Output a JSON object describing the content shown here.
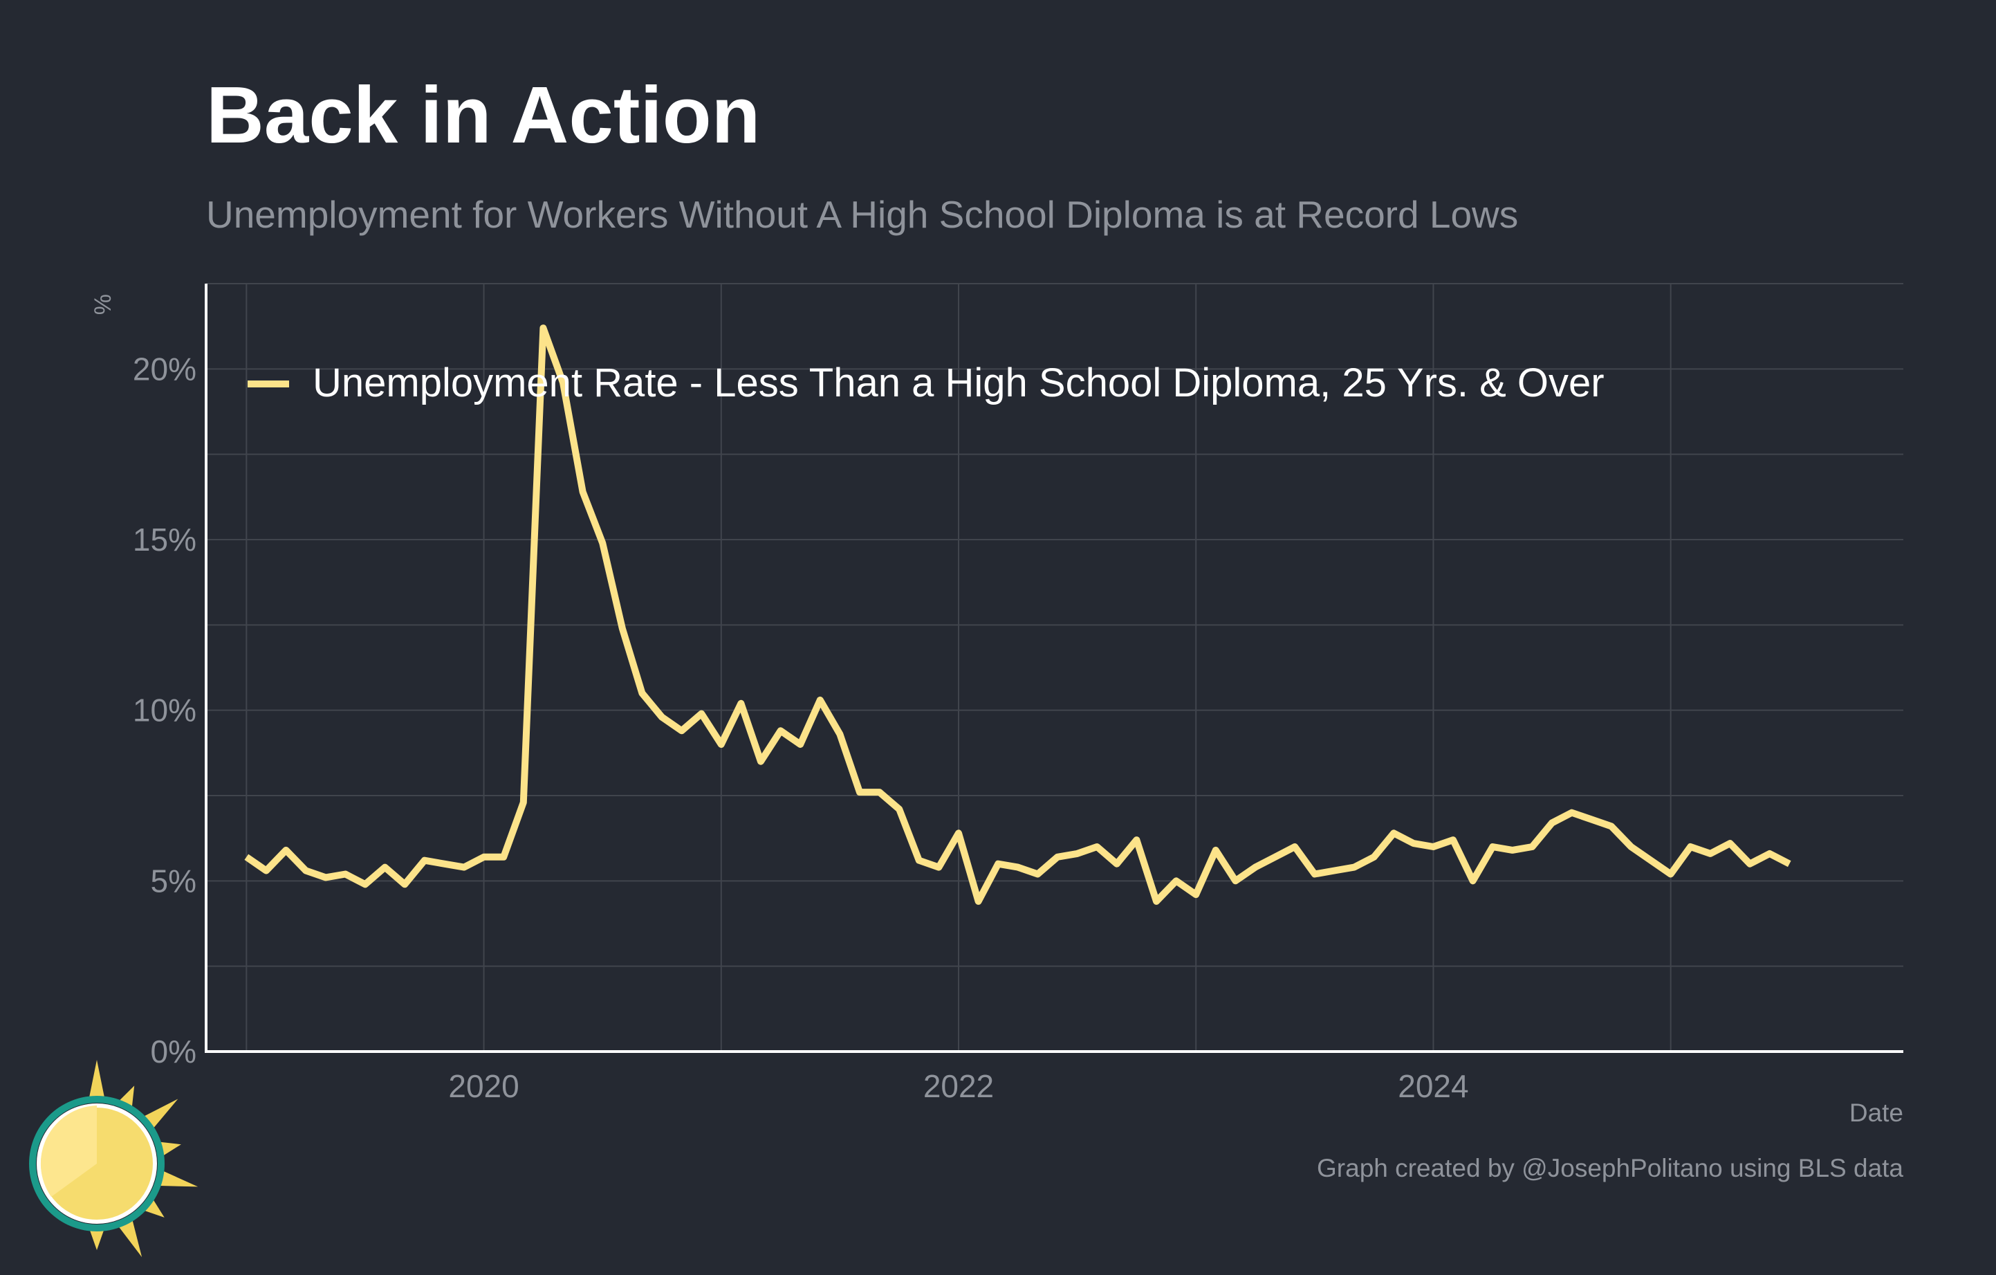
{
  "title": "Back in Action",
  "subtitle": "Unemployment for Workers Without A High School Diploma is at Record Lows",
  "credit": "Graph created by @JosephPolitano using BLS data",
  "colors": {
    "background": "#252932",
    "line": "#fce38a",
    "grid": "#41454d",
    "axis": "#ffffff",
    "muted_text": "#8f939b"
  },
  "logo": {
    "icon": "sun-icon"
  },
  "chart_data": {
    "type": "line",
    "xlabel": "Date",
    "ylabel": "%",
    "xlim": [
      2018.83,
      2025.98
    ],
    "ylim": [
      0,
      22.5
    ],
    "x_ticks": [
      2020,
      2022,
      2024
    ],
    "x_tick_labels": [
      "2020",
      "2022",
      "2024"
    ],
    "y_ticks": [
      0,
      5,
      10,
      15,
      20
    ],
    "y_tick_labels": [
      "0%",
      "5%",
      "10%",
      "15%",
      "20%"
    ],
    "grid": true,
    "legend_position": "top-left",
    "series": [
      {
        "name": "Unemployment Rate - Less Than a High School Diploma, 25 Yrs. & Over",
        "start": "2019-01",
        "frequency": "monthly",
        "values": [
          5.7,
          5.3,
          5.9,
          5.3,
          5.1,
          5.2,
          4.9,
          5.4,
          4.9,
          5.6,
          5.5,
          5.4,
          5.7,
          5.7,
          7.3,
          21.2,
          19.6,
          16.4,
          14.9,
          12.4,
          10.5,
          9.8,
          9.4,
          9.9,
          9.0,
          10.2,
          8.5,
          9.4,
          9.0,
          10.3,
          9.3,
          7.6,
          7.6,
          7.1,
          5.6,
          5.4,
          6.4,
          4.4,
          5.5,
          5.4,
          5.2,
          5.7,
          5.8,
          6.0,
          5.5,
          6.2,
          4.4,
          5.0,
          4.6,
          5.9,
          5.0,
          5.4,
          5.7,
          6.0,
          5.2,
          5.3,
          5.4,
          5.7,
          6.4,
          6.1,
          6.0,
          6.2,
          5.0,
          6.0,
          5.9,
          6.0,
          6.7,
          7.0,
          6.8,
          6.6,
          6.0,
          5.6,
          5.2,
          6.0,
          5.8,
          6.1,
          5.5,
          5.8,
          5.5
        ]
      }
    ]
  }
}
